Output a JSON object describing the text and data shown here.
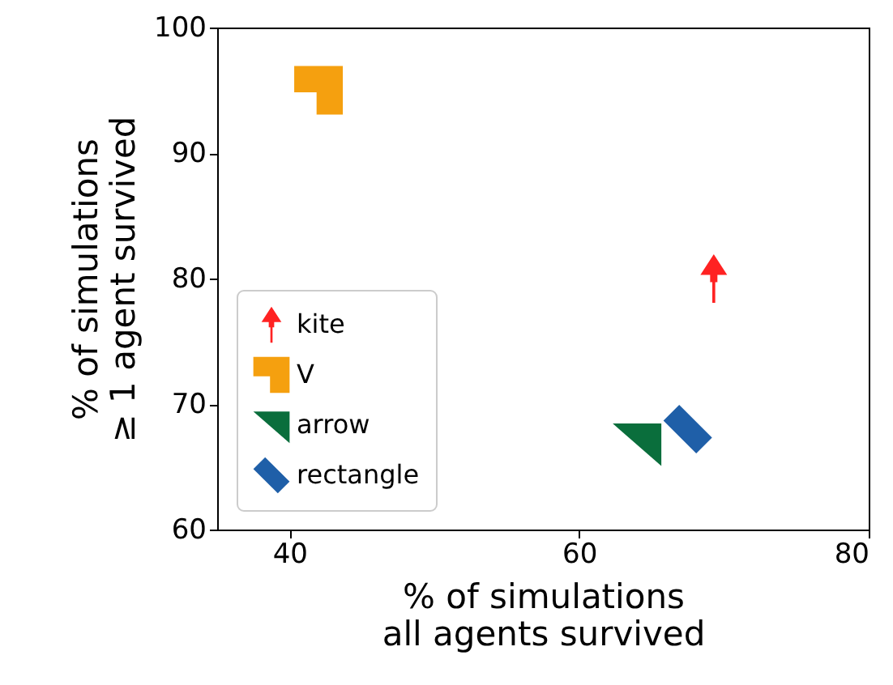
{
  "chart_data": {
    "type": "scatter",
    "xlabel": "% of simulations\nall agents survived",
    "ylabel": "% of simulations\n≥ 1 agent survived",
    "xlim": [
      35,
      80
    ],
    "xticks": [
      40,
      60,
      80
    ],
    "ylim": [
      60,
      100
    ],
    "yticks": [
      60,
      70,
      80,
      90,
      100
    ],
    "grid": false,
    "legend": "bottom left",
    "series": [
      {
        "name": "kite",
        "color": "#ff2222",
        "x": [
          69.3
        ],
        "values": [
          80
        ]
      },
      {
        "name": "V",
        "color": "#f5a00f",
        "x": [
          42
        ],
        "values": [
          95
        ]
      },
      {
        "name": "arrow",
        "color": "#0a6e3c",
        "x": [
          64
        ],
        "values": [
          67
        ]
      },
      {
        "name": "rectangle",
        "color": "#1f5fa8",
        "x": [
          67.5
        ],
        "values": [
          68
        ]
      }
    ]
  }
}
